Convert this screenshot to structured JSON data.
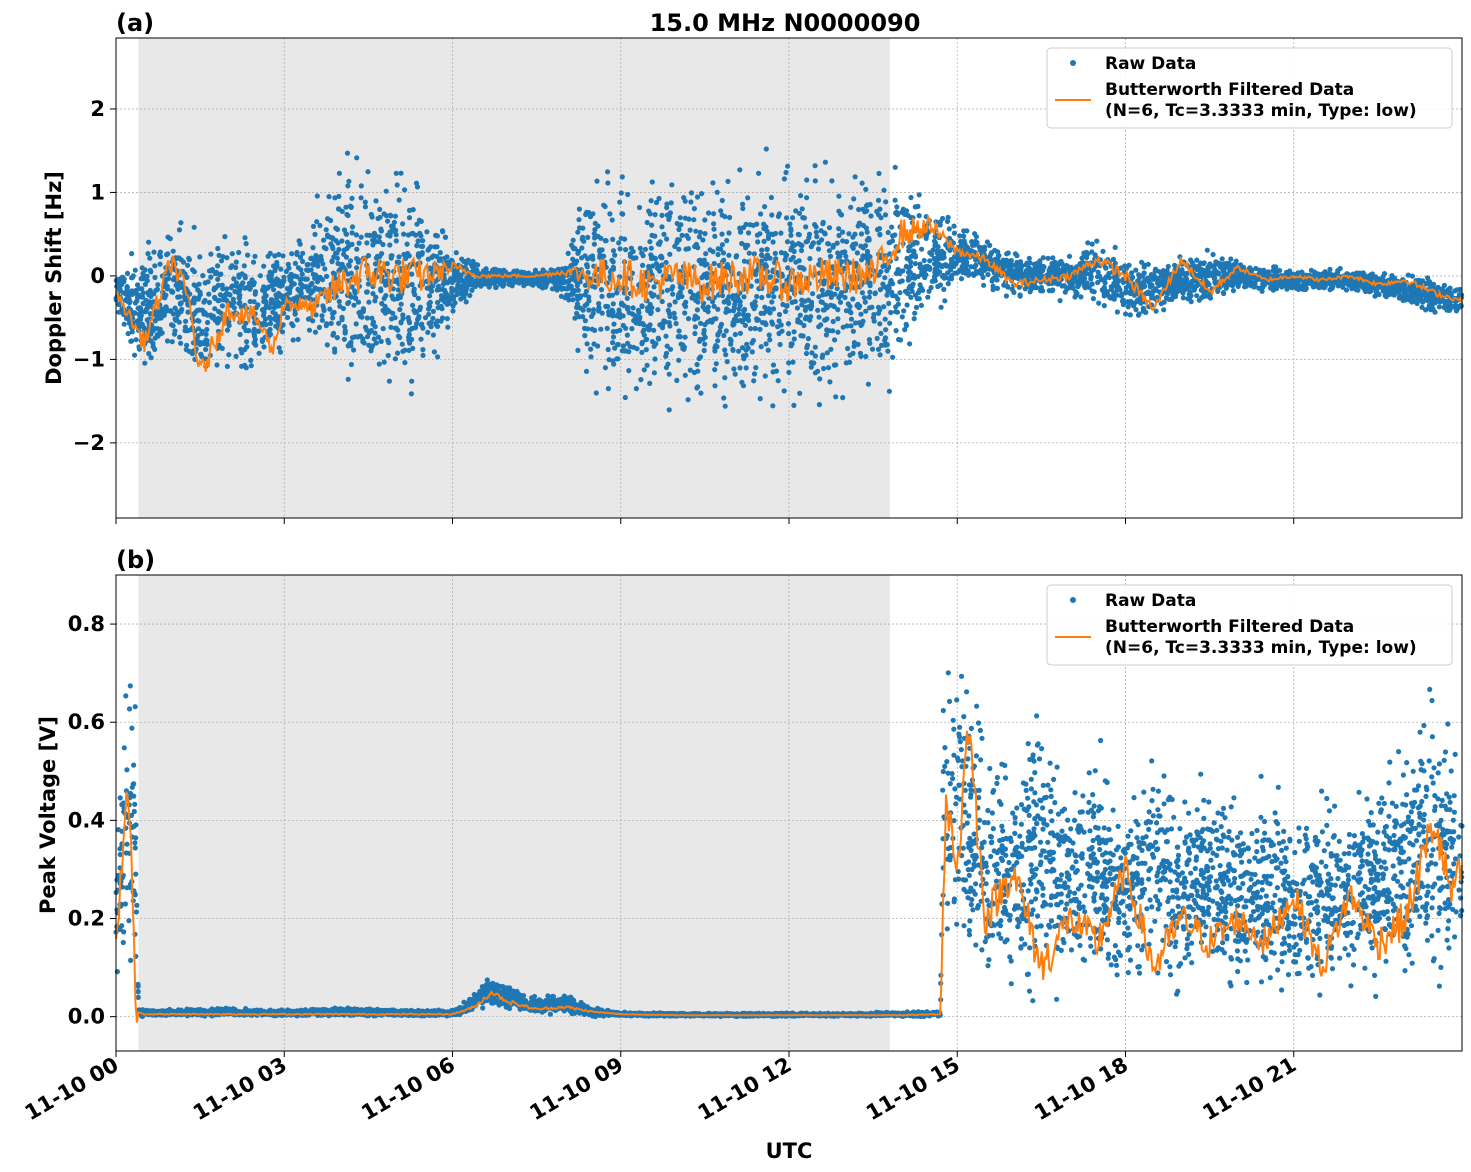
{
  "figure": {
    "title": "15.0 MHz N0000090",
    "xlabel": "UTC",
    "x_tick_labels": [
      "11-10 00",
      "11-10 03",
      "11-10 06",
      "11-10 09",
      "11-10 12",
      "11-10 15",
      "11-10 18",
      "11-10 21"
    ],
    "colors": {
      "raw": "#1f77b4",
      "filtered": "#ff7f0e",
      "shade": "#e8e8e8",
      "grid": "#b0b0b0"
    },
    "shaded_interval_hours": [
      0.4,
      13.8
    ]
  },
  "legend": {
    "raw_label": "Raw Data",
    "filtered_label_line1": "Butterworth Filtered Data",
    "filtered_label_line2": "(N=6, Tc=3.3333 min, Type: low)",
    "placement": "upper-right"
  },
  "chart_data": [
    {
      "type": "scatter",
      "panel_label": "(a)",
      "ylabel": "Doppler Shift [Hz]",
      "xlim_hours": [
        0,
        24
      ],
      "ylim": [
        -2.9,
        2.85
      ],
      "y_ticks": [
        2,
        1,
        0,
        -1,
        -2
      ],
      "y_tick_labels": [
        "2",
        "1",
        "0",
        "−1",
        "−2"
      ],
      "grid": true,
      "series": [
        {
          "name": "Raw Data",
          "envelope_x_hours": [
            0,
            0.5,
            1.0,
            1.5,
            2.0,
            2.5,
            3.0,
            3.5,
            4.0,
            4.5,
            5.0,
            5.5,
            6.0,
            6.5,
            7.0,
            7.5,
            8.0,
            8.5,
            9.0,
            9.5,
            10.0,
            10.5,
            11.0,
            11.5,
            12.0,
            12.5,
            13.0,
            13.5,
            14.0,
            14.5,
            15.0,
            15.5,
            16.0,
            16.5,
            17.0,
            17.5,
            18.0,
            18.5,
            19.0,
            19.5,
            20.0,
            20.5,
            21.0,
            21.5,
            22.0,
            22.5,
            23.0,
            23.5,
            24.0
          ],
          "upper": [
            0.1,
            0.5,
            0.8,
            0.6,
            0.7,
            0.5,
            0.5,
            0.8,
            1.6,
            1.7,
            1.6,
            1.4,
            0.4,
            0.15,
            0.1,
            0.1,
            0.2,
            1.5,
            1.5,
            1.5,
            1.5,
            1.5,
            1.4,
            1.5,
            1.5,
            1.5,
            1.5,
            1.5,
            1.5,
            1.0,
            0.7,
            0.5,
            0.4,
            0.3,
            0.3,
            0.5,
            0.3,
            0.3,
            0.3,
            0.4,
            0.2,
            0.15,
            0.1,
            0.1,
            0.1,
            0.1,
            0.05,
            0.0,
            -0.1
          ],
          "lower": [
            -0.5,
            -1.3,
            -1.2,
            -1.6,
            -1.3,
            -1.3,
            -1.0,
            -0.9,
            -1.6,
            -1.7,
            -1.8,
            -1.6,
            -0.6,
            -0.2,
            -0.15,
            -0.15,
            -0.3,
            -1.6,
            -1.8,
            -1.7,
            -1.7,
            -1.8,
            -1.8,
            -1.8,
            -1.8,
            -1.7,
            -1.6,
            -1.6,
            -1.3,
            -0.6,
            -0.2,
            -0.2,
            -0.3,
            -0.3,
            -0.3,
            -0.4,
            -0.7,
            -0.5,
            -0.4,
            -0.4,
            -0.2,
            -0.2,
            -0.2,
            -0.2,
            -0.2,
            -0.3,
            -0.4,
            -0.5,
            -0.5
          ]
        },
        {
          "name": "Butterworth Filtered Data",
          "x_hours": [
            0,
            0.5,
            1.0,
            1.3,
            1.5,
            2.0,
            2.5,
            2.8,
            3.0,
            3.5,
            4.0,
            4.5,
            5.0,
            5.5,
            6.0,
            6.5,
            7.0,
            7.5,
            8.0,
            8.5,
            9.0,
            9.5,
            10.0,
            10.5,
            11.0,
            11.5,
            12.0,
            12.5,
            13.0,
            13.5,
            14.0,
            14.5,
            15.0,
            15.5,
            16.0,
            16.5,
            17.0,
            17.5,
            18.0,
            18.5,
            19.0,
            19.5,
            20.0,
            20.5,
            21.0,
            21.5,
            22.0,
            22.5,
            23.0,
            23.5,
            24.0
          ],
          "y": [
            -0.2,
            -0.8,
            0.2,
            -0.3,
            -1.2,
            -0.4,
            -0.5,
            -0.9,
            -0.3,
            -0.4,
            -0.1,
            0.05,
            0.0,
            0.0,
            0.1,
            0.0,
            0.0,
            0.0,
            0.05,
            0.0,
            0.0,
            -0.1,
            0.0,
            -0.1,
            0.0,
            0.0,
            -0.1,
            0.0,
            0.0,
            0.0,
            0.5,
            0.6,
            0.3,
            0.2,
            -0.1,
            -0.05,
            0.0,
            0.2,
            0.0,
            -0.4,
            0.2,
            -0.2,
            0.1,
            -0.05,
            0.0,
            -0.05,
            0.0,
            -0.1,
            -0.05,
            -0.2,
            -0.3
          ]
        }
      ]
    },
    {
      "type": "scatter",
      "panel_label": "(b)",
      "ylabel": "Peak Voltage [V]",
      "xlim_hours": [
        0,
        24
      ],
      "ylim": [
        -0.07,
        0.9
      ],
      "y_ticks": [
        0.8,
        0.6,
        0.4,
        0.2,
        0.0
      ],
      "y_tick_labels": [
        "0.8",
        "0.6",
        "0.4",
        "0.2",
        "0.0"
      ],
      "grid": true,
      "series": [
        {
          "name": "Raw Data",
          "envelope_x_hours": [
            0,
            0.2,
            0.35,
            0.4,
            0.5,
            1.0,
            2.0,
            3.0,
            4.0,
            5.0,
            6.0,
            6.3,
            6.6,
            7.0,
            7.5,
            8.0,
            8.5,
            9.0,
            10.0,
            11.0,
            12.0,
            13.0,
            14.0,
            14.7,
            14.75,
            15.0,
            15.5,
            16.0,
            16.5,
            17.0,
            17.5,
            18.0,
            18.5,
            19.0,
            19.5,
            20.0,
            20.5,
            21.0,
            21.5,
            22.0,
            22.5,
            23.0,
            23.5,
            24.0
          ],
          "upper": [
            0.4,
            0.8,
            0.7,
            0.02,
            0.015,
            0.015,
            0.02,
            0.015,
            0.02,
            0.015,
            0.015,
            0.04,
            0.09,
            0.07,
            0.04,
            0.05,
            0.02,
            0.01,
            0.008,
            0.008,
            0.008,
            0.008,
            0.01,
            0.012,
            0.75,
            0.85,
            0.6,
            0.55,
            0.7,
            0.5,
            0.6,
            0.45,
            0.65,
            0.45,
            0.55,
            0.45,
            0.5,
            0.45,
            0.5,
            0.45,
            0.55,
            0.6,
            0.75,
            0.55
          ],
          "lower": [
            0.03,
            0.05,
            0.02,
            0.0,
            0.0,
            0.0,
            0.0,
            0.0,
            0.0,
            0.0,
            0.0,
            0.005,
            0.015,
            0.01,
            0.005,
            0.005,
            0.0,
            0.0,
            0.0,
            0.0,
            0.0,
            0.0,
            0.0,
            0.0,
            0.05,
            0.05,
            0.02,
            0.02,
            0.02,
            0.02,
            0.02,
            0.02,
            0.02,
            0.02,
            0.02,
            0.02,
            0.02,
            0.02,
            0.02,
            0.02,
            0.02,
            0.02,
            0.03,
            0.04
          ]
        },
        {
          "name": "Butterworth Filtered Data",
          "x_hours": [
            0,
            0.1,
            0.2,
            0.3,
            0.35,
            0.4,
            0.5,
            1.0,
            2.0,
            3.0,
            4.0,
            5.0,
            6.0,
            6.4,
            6.7,
            7.0,
            7.5,
            8.0,
            8.5,
            9.0,
            10.0,
            12.0,
            14.0,
            14.7,
            14.8,
            15.0,
            15.2,
            15.5,
            16.0,
            16.5,
            17.0,
            17.5,
            18.0,
            18.5,
            19.0,
            19.5,
            20.0,
            20.5,
            21.0,
            21.5,
            22.0,
            22.5,
            23.0,
            23.5,
            23.8,
            24.0
          ],
          "y": [
            0.15,
            0.3,
            0.5,
            0.25,
            0.0,
            0.01,
            0.005,
            0.005,
            0.005,
            0.005,
            0.005,
            0.005,
            0.005,
            0.02,
            0.05,
            0.03,
            0.015,
            0.02,
            0.01,
            0.005,
            0.003,
            0.003,
            0.003,
            0.005,
            0.45,
            0.3,
            0.6,
            0.2,
            0.3,
            0.1,
            0.2,
            0.15,
            0.3,
            0.1,
            0.2,
            0.15,
            0.2,
            0.15,
            0.25,
            0.1,
            0.25,
            0.15,
            0.2,
            0.4,
            0.25,
            0.3
          ]
        }
      ]
    }
  ]
}
